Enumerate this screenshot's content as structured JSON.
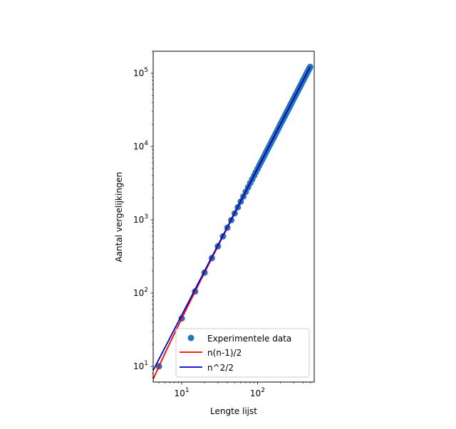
{
  "chart_data": {
    "type": "scatter",
    "xlabel": "Lengte lijst",
    "ylabel": "Aantal vergelijkingen",
    "xscale": "log",
    "yscale": "log",
    "xlim": [
      4.2,
      560
    ],
    "ylim": [
      6.1,
      200000
    ],
    "xticks": [
      {
        "value": 10,
        "base": "10",
        "exp": "1"
      },
      {
        "value": 100,
        "base": "10",
        "exp": "2"
      }
    ],
    "yticks": [
      {
        "value": 10,
        "base": "10",
        "exp": "1"
      },
      {
        "value": 100,
        "base": "10",
        "exp": "2"
      },
      {
        "value": 1000,
        "base": "10",
        "exp": "3"
      },
      {
        "value": 10000,
        "base": "10",
        "exp": "4"
      },
      {
        "value": 100000,
        "base": "10",
        "exp": "5"
      }
    ],
    "grid": false,
    "legend": {
      "placement": "lower-right",
      "entries": [
        {
          "label": "Experimentele data",
          "kind": "marker",
          "color": "#1f77b4"
        },
        {
          "label": "n(n-1)/2",
          "kind": "line",
          "color": "#ff0000"
        },
        {
          "label": "n^2/2",
          "kind": "line",
          "color": "#0000cd"
        }
      ]
    },
    "series": [
      {
        "kind": "scatter",
        "color": "#1f77b4",
        "x_start": 5,
        "x_end": 495,
        "x_step": 5,
        "formula": "n(n-1)/2"
      },
      {
        "kind": "line",
        "color": "#ff0000",
        "x_start": 4.2,
        "x_end": 495,
        "formula": "n(n-1)/2"
      },
      {
        "kind": "line",
        "color": "#0000cd",
        "x_start": 4.2,
        "x_end": 495,
        "formula": "n^2/2"
      }
    ]
  }
}
